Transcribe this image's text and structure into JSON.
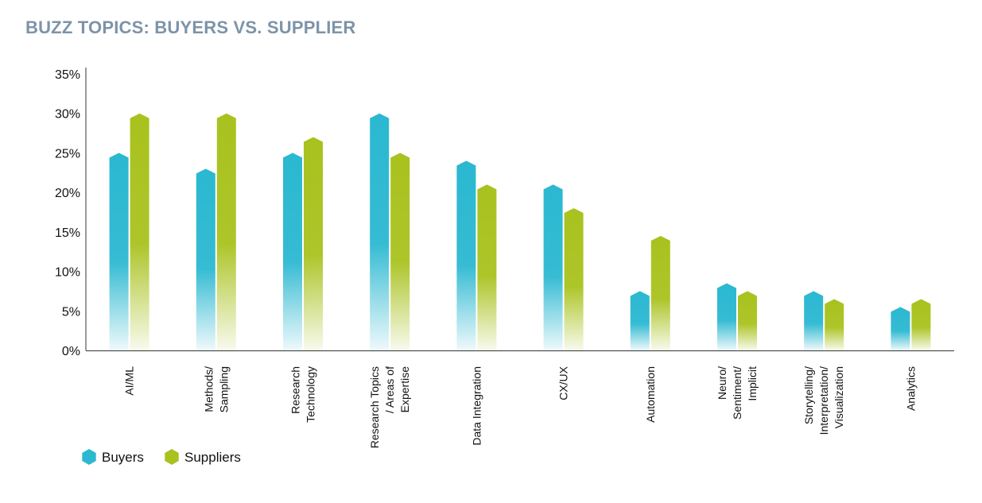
{
  "colors": {
    "title": "#7d93a8",
    "buyers": "#2bb8d1",
    "suppliers": "#a9c21e",
    "axis": "#333333"
  },
  "chart_data": {
    "type": "bar",
    "title": "BUZZ TOPICS: BUYERS VS. SUPPLIER",
    "xlabel": "",
    "ylabel": "",
    "ylim": [
      0,
      35
    ],
    "yticks": [
      0,
      5,
      10,
      15,
      20,
      25,
      30,
      35
    ],
    "ytick_labels": [
      "0%",
      "5%",
      "10%",
      "15%",
      "20%",
      "25%",
      "30%",
      "35%"
    ],
    "grid": false,
    "legend_position": "bottom-left",
    "categories": [
      [
        "AI/ML"
      ],
      [
        "Methods/",
        "Sampling"
      ],
      [
        "Research",
        "Technology"
      ],
      [
        "Research Topics",
        "/ Areas of",
        "Expertise"
      ],
      [
        "Data Integration"
      ],
      [
        "CX/UX"
      ],
      [
        "Automation"
      ],
      [
        "Neuro/",
        "Sentiment/",
        "Implicit"
      ],
      [
        "Storytelling/",
        "Interpretation/",
        "Visualization"
      ],
      [
        "Analytics"
      ]
    ],
    "series": [
      {
        "name": "Buyers",
        "values": [
          25,
          23,
          25,
          30,
          24,
          21,
          7.5,
          8.5,
          7.5,
          5.5
        ]
      },
      {
        "name": "Suppliers",
        "values": [
          30,
          30,
          27,
          25,
          21,
          18,
          14.5,
          7.5,
          6.5,
          6.5
        ]
      }
    ]
  }
}
